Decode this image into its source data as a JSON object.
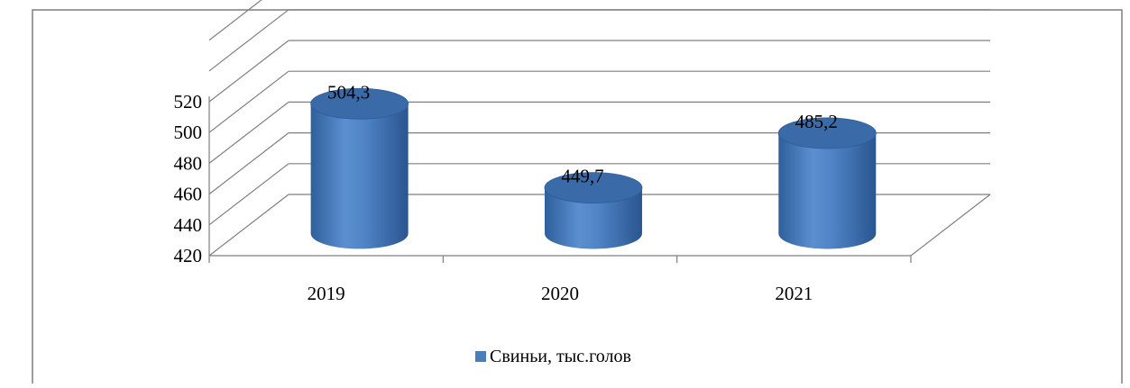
{
  "chart_data": {
    "type": "bar",
    "style": "3d-cylinder",
    "categories": [
      "2019",
      "2020",
      "2021"
    ],
    "series": [
      {
        "name": "Свиньи, тыс.голов",
        "values": [
          504.3,
          449.7,
          485.2
        ]
      }
    ],
    "data_labels": [
      "504,3",
      "449,7",
      "485,2"
    ],
    "y_ticks": [
      "420",
      "440",
      "460",
      "480",
      "500",
      "520"
    ],
    "ylim": [
      420,
      520
    ],
    "grid": true,
    "legend_position": "bottom",
    "colors": {
      "bar": "#4a7ebb",
      "bar_top": "#3a6aa8",
      "bar_light": "#6a9ad6",
      "grid": "#7f7f7f",
      "frame": "#7f7f7f"
    }
  }
}
